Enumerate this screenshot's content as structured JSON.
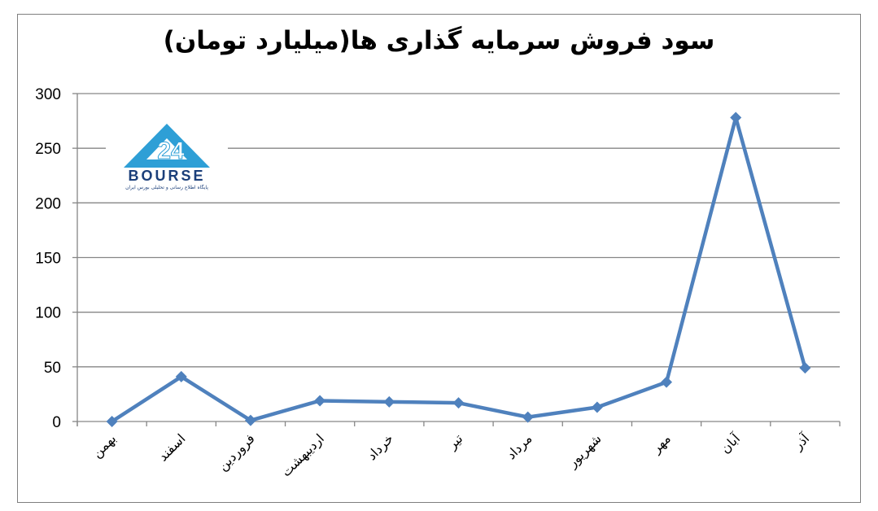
{
  "chart_data": {
    "type": "line",
    "title": "سود فروش سرمایه گذاری ها(میلیارد تومان)",
    "categories": [
      "بهمن",
      "اسفند",
      "فروردین",
      "اردیبهشت",
      "خرداد",
      "تیر",
      "مرداد",
      "شهریور",
      "مهر",
      "آبان",
      "آذر"
    ],
    "series": [
      {
        "values": [
          0,
          41,
          1,
          19,
          18,
          17,
          4,
          13,
          36,
          278,
          49
        ]
      }
    ],
    "ylim": [
      0,
      300
    ],
    "yticks": [
      0,
      50,
      100,
      150,
      200,
      250,
      300
    ],
    "grid": true,
    "line_color": "#4f81bd"
  },
  "logo": {
    "text": "BOURSE",
    "number": "24",
    "tagline": "پایگاه اطلاع رسانی و تحلیلی بورس ایران",
    "colors": {
      "primary": "#2e9fd6",
      "dark": "#1b3f7a"
    }
  }
}
